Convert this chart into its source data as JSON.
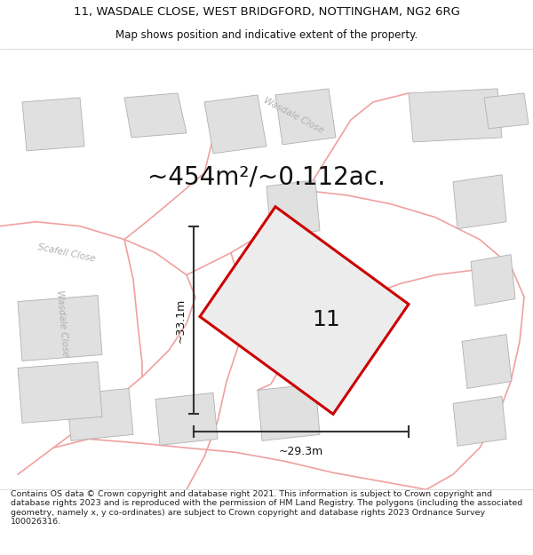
{
  "title_line1": "11, WASDALE CLOSE, WEST BRIDGFORD, NOTTINGHAM, NG2 6RG",
  "title_line2": "Map shows position and indicative extent of the property.",
  "area_text": "~454m²/~0.112ac.",
  "property_number": "11",
  "dim_width": "~29.3m",
  "dim_height": "~33.1m",
  "footer_text": "Contains OS data © Crown copyright and database right 2021. This information is subject to Crown copyright and database rights 2023 and is reproduced with the permission of HM Land Registry. The polygons (including the associated geometry, namely x, y co-ordinates) are subject to Crown copyright and database rights 2023 Ordnance Survey 100026316.",
  "bg_color": "#ffffff",
  "property_fill": "#e8e8e8",
  "property_edge": "#cc0000",
  "building_fill": "#e0e0e0",
  "building_edge": "#b0b0b0",
  "road_color": "#f0a0a0",
  "road_edge_color": "#d08080",
  "road_label_color": "#b0b0b0",
  "title_fontsize": 9.5,
  "subtitle_fontsize": 8.5,
  "area_fontsize": 20,
  "label_fontsize": 18,
  "dim_fontsize": 9,
  "footer_fontsize": 6.8
}
